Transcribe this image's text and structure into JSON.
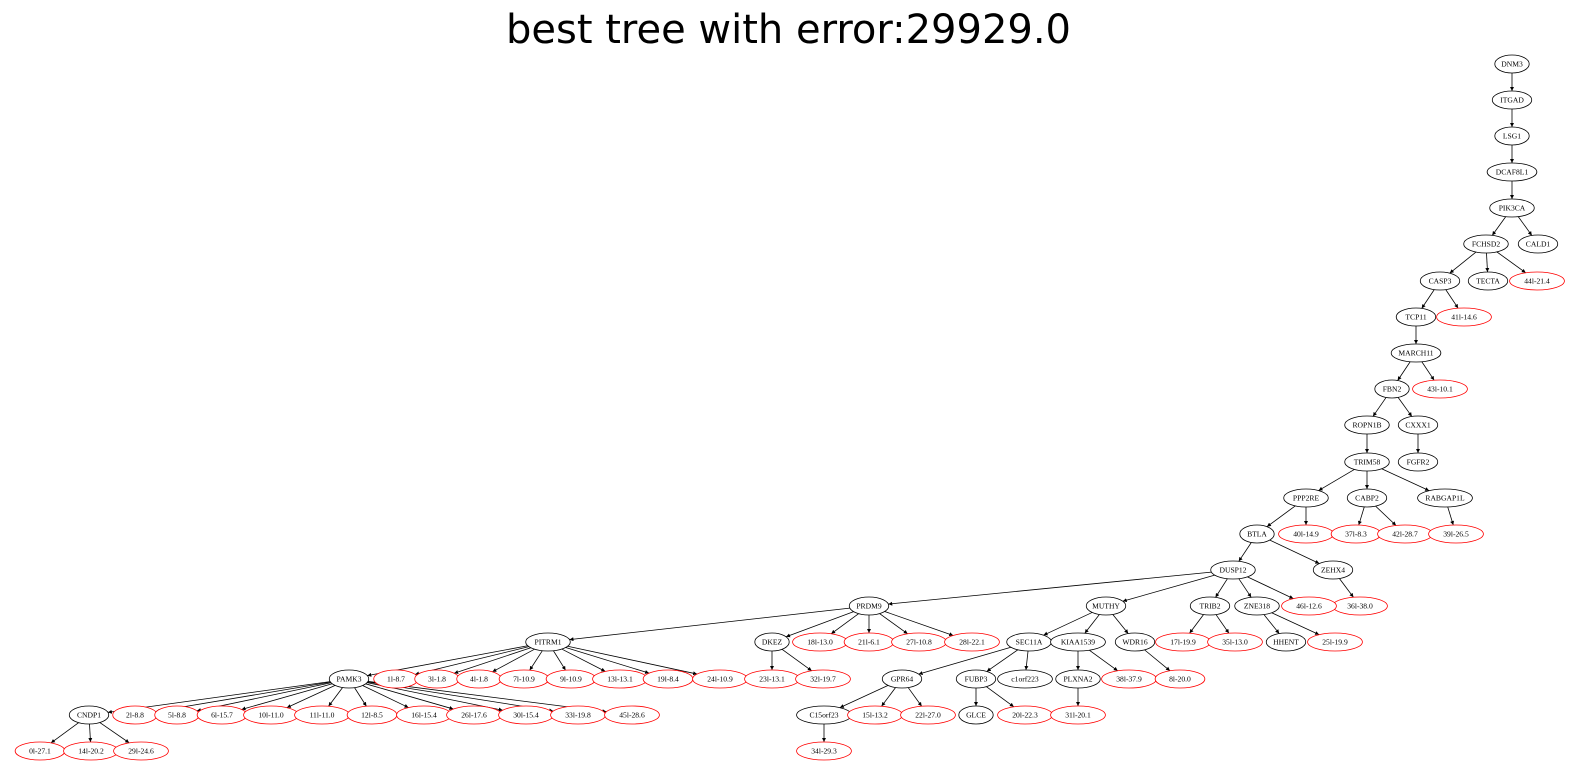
{
  "title": "best tree with error:29929.0",
  "colors": {
    "gene_stroke": "#000000",
    "sample_stroke": "#ff0000",
    "edge": "#000000",
    "background": "#ffffff"
  },
  "nodes": [
    {
      "id": "DNM3",
      "label": "DNM3",
      "kind": "gene"
    },
    {
      "id": "ITGAD",
      "label": "ITGAD",
      "kind": "gene"
    },
    {
      "id": "LSG1",
      "label": "LSG1",
      "kind": "gene"
    },
    {
      "id": "DCAF8L1",
      "label": "DCAF8L1",
      "kind": "gene"
    },
    {
      "id": "PIK3CA",
      "label": "PIK3CA",
      "kind": "gene"
    },
    {
      "id": "FCHSD2",
      "label": "FCHSD2",
      "kind": "gene"
    },
    {
      "id": "CALD1",
      "label": "CALD1",
      "kind": "gene"
    },
    {
      "id": "CASP3",
      "label": "CASP3",
      "kind": "gene"
    },
    {
      "id": "TECTA",
      "label": "TECTA",
      "kind": "gene"
    },
    {
      "id": "s44",
      "label": "44l-21.4",
      "kind": "sample"
    },
    {
      "id": "TCP11",
      "label": "TCP11",
      "kind": "gene"
    },
    {
      "id": "s41",
      "label": "41l-14.6",
      "kind": "sample"
    },
    {
      "id": "MARCH11",
      "label": "MARCH11",
      "kind": "gene"
    },
    {
      "id": "FBN2",
      "label": "FBN2",
      "kind": "gene"
    },
    {
      "id": "s43",
      "label": "43l-10.1",
      "kind": "sample"
    },
    {
      "id": "ROPN1B",
      "label": "ROPN1B",
      "kind": "gene"
    },
    {
      "id": "CXXX1",
      "label": "CXXX1",
      "kind": "gene"
    },
    {
      "id": "TRIM58",
      "label": "TRIM58",
      "kind": "gene"
    },
    {
      "id": "FGFR2",
      "label": "FGFR2",
      "kind": "gene"
    },
    {
      "id": "PPP2RE",
      "label": "PPP2RE",
      "kind": "gene"
    },
    {
      "id": "CABP2",
      "label": "CABP2",
      "kind": "gene"
    },
    {
      "id": "RABGAP1L",
      "label": "RABGAP1L",
      "kind": "gene"
    },
    {
      "id": "BTLA",
      "label": "BTLA",
      "kind": "gene"
    },
    {
      "id": "s40",
      "label": "40l-14.9",
      "kind": "sample"
    },
    {
      "id": "s37",
      "label": "37l-8.3",
      "kind": "sample"
    },
    {
      "id": "s42",
      "label": "42l-28.7",
      "kind": "sample"
    },
    {
      "id": "s39",
      "label": "39l-26.5",
      "kind": "sample"
    },
    {
      "id": "DUSP12",
      "label": "DUSP12",
      "kind": "gene"
    },
    {
      "id": "ZEHX4",
      "label": "ZEHX4",
      "kind": "gene"
    },
    {
      "id": "s36",
      "label": "36l-38.0",
      "kind": "sample"
    },
    {
      "id": "PRDM9",
      "label": "PRDM9",
      "kind": "gene"
    },
    {
      "id": "MUTHY",
      "label": "MUTHY",
      "kind": "gene"
    },
    {
      "id": "TRIB2",
      "label": "TRIB2",
      "kind": "gene"
    },
    {
      "id": "ZNE318",
      "label": "ZNE318",
      "kind": "gene"
    },
    {
      "id": "s46",
      "label": "46l-12.6",
      "kind": "sample"
    },
    {
      "id": "PITRM1",
      "label": "PITRM1",
      "kind": "gene"
    },
    {
      "id": "DKEZ",
      "label": "DKEZ",
      "kind": "gene"
    },
    {
      "id": "s18",
      "label": "18l-13.0",
      "kind": "sample"
    },
    {
      "id": "s21",
      "label": "21l-6.1",
      "kind": "sample"
    },
    {
      "id": "s27",
      "label": "27l-10.8",
      "kind": "sample"
    },
    {
      "id": "s28",
      "label": "28l-22.1",
      "kind": "sample"
    },
    {
      "id": "SEC11A",
      "label": "SEC11A",
      "kind": "gene"
    },
    {
      "id": "KIAA1539",
      "label": "KIAA1539",
      "kind": "gene"
    },
    {
      "id": "WDR16",
      "label": "WDR16",
      "kind": "gene"
    },
    {
      "id": "s17",
      "label": "17l-19.9",
      "kind": "sample"
    },
    {
      "id": "s35",
      "label": "35l-13.0",
      "kind": "sample"
    },
    {
      "id": "HHENT",
      "label": "HHENT",
      "kind": "gene"
    },
    {
      "id": "s25",
      "label": "25l-19.9",
      "kind": "sample"
    },
    {
      "id": "PAMK3",
      "label": "PAMK3",
      "kind": "gene"
    },
    {
      "id": "s1",
      "label": "1l-8.7",
      "kind": "sample"
    },
    {
      "id": "s3",
      "label": "3l-1.8",
      "kind": "sample"
    },
    {
      "id": "s4",
      "label": "4l-1.8",
      "kind": "sample"
    },
    {
      "id": "s7",
      "label": "7l-10.9",
      "kind": "sample"
    },
    {
      "id": "s9",
      "label": "9l-10.9",
      "kind": "sample"
    },
    {
      "id": "s13",
      "label": "13l-13.1",
      "kind": "sample"
    },
    {
      "id": "s19",
      "label": "19l-8.4",
      "kind": "sample"
    },
    {
      "id": "s24",
      "label": "24l-10.9",
      "kind": "sample"
    },
    {
      "id": "s23",
      "label": "23l-13.1",
      "kind": "sample"
    },
    {
      "id": "s32",
      "label": "32l-19.7",
      "kind": "sample"
    },
    {
      "id": "GPR64",
      "label": "GPR64",
      "kind": "gene"
    },
    {
      "id": "FUBP3",
      "label": "FUBP3",
      "kind": "gene"
    },
    {
      "id": "c1orf223",
      "label": "c1orf223",
      "kind": "gene"
    },
    {
      "id": "PLXNA2",
      "label": "PLXNA2",
      "kind": "gene"
    },
    {
      "id": "s38",
      "label": "38l-37.9",
      "kind": "sample"
    },
    {
      "id": "s8",
      "label": "8l-20.0",
      "kind": "sample"
    },
    {
      "id": "CNDP1",
      "label": "CNDP1",
      "kind": "gene"
    },
    {
      "id": "s2",
      "label": "2l-8.8",
      "kind": "sample"
    },
    {
      "id": "s5",
      "label": "5l-8.8",
      "kind": "sample"
    },
    {
      "id": "s6",
      "label": "6l-15.7",
      "kind": "sample"
    },
    {
      "id": "s10",
      "label": "10l-11.0",
      "kind": "sample"
    },
    {
      "id": "s11",
      "label": "11l-11.0",
      "kind": "sample"
    },
    {
      "id": "s12",
      "label": "12l-8.5",
      "kind": "sample"
    },
    {
      "id": "s16",
      "label": "16l-15.4",
      "kind": "sample"
    },
    {
      "id": "s26",
      "label": "26l-17.6",
      "kind": "sample"
    },
    {
      "id": "s30",
      "label": "30l-15.4",
      "kind": "sample"
    },
    {
      "id": "s33",
      "label": "33l-19.8",
      "kind": "sample"
    },
    {
      "id": "s45",
      "label": "45l-28.6",
      "kind": "sample"
    },
    {
      "id": "C15orf23",
      "label": "C15orf23",
      "kind": "gene"
    },
    {
      "id": "s15",
      "label": "15l-13.2",
      "kind": "sample"
    },
    {
      "id": "s22",
      "label": "22l-27.0",
      "kind": "sample"
    },
    {
      "id": "GLCE",
      "label": "GLCE",
      "kind": "gene"
    },
    {
      "id": "s20",
      "label": "20l-22.3",
      "kind": "sample"
    },
    {
      "id": "s31",
      "label": "31l-20.1",
      "kind": "sample"
    },
    {
      "id": "s0",
      "label": "0l-27.1",
      "kind": "sample"
    },
    {
      "id": "s14",
      "label": "14l-20.2",
      "kind": "sample"
    },
    {
      "id": "s29",
      "label": "29l-24.6",
      "kind": "sample"
    },
    {
      "id": "s34",
      "label": "34l-29.3",
      "kind": "sample"
    }
  ],
  "edges": [
    [
      "DNM3",
      "ITGAD"
    ],
    [
      "ITGAD",
      "LSG1"
    ],
    [
      "LSG1",
      "DCAF8L1"
    ],
    [
      "DCAF8L1",
      "PIK3CA"
    ],
    [
      "PIK3CA",
      "FCHSD2"
    ],
    [
      "PIK3CA",
      "CALD1"
    ],
    [
      "FCHSD2",
      "CASP3"
    ],
    [
      "FCHSD2",
      "TECTA"
    ],
    [
      "FCHSD2",
      "s44"
    ],
    [
      "CASP3",
      "TCP11"
    ],
    [
      "CASP3",
      "s41"
    ],
    [
      "TCP11",
      "MARCH11"
    ],
    [
      "MARCH11",
      "FBN2"
    ],
    [
      "MARCH11",
      "s43"
    ],
    [
      "FBN2",
      "ROPN1B"
    ],
    [
      "FBN2",
      "CXXX1"
    ],
    [
      "ROPN1B",
      "TRIM58"
    ],
    [
      "CXXX1",
      "FGFR2"
    ],
    [
      "TRIM58",
      "PPP2RE"
    ],
    [
      "TRIM58",
      "CABP2"
    ],
    [
      "TRIM58",
      "RABGAP1L"
    ],
    [
      "PPP2RE",
      "BTLA"
    ],
    [
      "PPP2RE",
      "s40"
    ],
    [
      "CABP2",
      "s37"
    ],
    [
      "CABP2",
      "s42"
    ],
    [
      "RABGAP1L",
      "s39"
    ],
    [
      "BTLA",
      "DUSP12"
    ],
    [
      "BTLA",
      "ZEHX4"
    ],
    [
      "ZEHX4",
      "s36"
    ],
    [
      "DUSP12",
      "PRDM9"
    ],
    [
      "DUSP12",
      "MUTHY"
    ],
    [
      "DUSP12",
      "TRIB2"
    ],
    [
      "DUSP12",
      "ZNE318"
    ],
    [
      "DUSP12",
      "s46"
    ],
    [
      "PRDM9",
      "PITRM1"
    ],
    [
      "PRDM9",
      "DKEZ"
    ],
    [
      "PRDM9",
      "s18"
    ],
    [
      "PRDM9",
      "s21"
    ],
    [
      "PRDM9",
      "s27"
    ],
    [
      "PRDM9",
      "s28"
    ],
    [
      "MUTHY",
      "SEC11A"
    ],
    [
      "MUTHY",
      "KIAA1539"
    ],
    [
      "MUTHY",
      "WDR16"
    ],
    [
      "TRIB2",
      "s17"
    ],
    [
      "TRIB2",
      "s35"
    ],
    [
      "ZNE318",
      "HHENT"
    ],
    [
      "ZNE318",
      "s25"
    ],
    [
      "PITRM1",
      "PAMK3"
    ],
    [
      "PITRM1",
      "s1"
    ],
    [
      "PITRM1",
      "s3"
    ],
    [
      "PITRM1",
      "s4"
    ],
    [
      "PITRM1",
      "s7"
    ],
    [
      "PITRM1",
      "s9"
    ],
    [
      "PITRM1",
      "s13"
    ],
    [
      "PITRM1",
      "s19"
    ],
    [
      "PITRM1",
      "s24"
    ],
    [
      "DKEZ",
      "s23"
    ],
    [
      "DKEZ",
      "s32"
    ],
    [
      "SEC11A",
      "GPR64"
    ],
    [
      "SEC11A",
      "FUBP3"
    ],
    [
      "SEC11A",
      "c1orf223"
    ],
    [
      "KIAA1539",
      "PLXNA2"
    ],
    [
      "KIAA1539",
      "s38"
    ],
    [
      "WDR16",
      "s8"
    ],
    [
      "PAMK3",
      "CNDP1"
    ],
    [
      "PAMK3",
      "s2"
    ],
    [
      "PAMK3",
      "s5"
    ],
    [
      "PAMK3",
      "s6"
    ],
    [
      "PAMK3",
      "s10"
    ],
    [
      "PAMK3",
      "s11"
    ],
    [
      "PAMK3",
      "s12"
    ],
    [
      "PAMK3",
      "s16"
    ],
    [
      "PAMK3",
      "s26"
    ],
    [
      "PAMK3",
      "s30"
    ],
    [
      "PAMK3",
      "s33"
    ],
    [
      "PAMK3",
      "s45"
    ],
    [
      "GPR64",
      "C15orf23"
    ],
    [
      "GPR64",
      "s15"
    ],
    [
      "GPR64",
      "s22"
    ],
    [
      "FUBP3",
      "GLCE"
    ],
    [
      "FUBP3",
      "s20"
    ],
    [
      "PLXNA2",
      "s31"
    ],
    [
      "CNDP1",
      "s0"
    ],
    [
      "CNDP1",
      "s14"
    ],
    [
      "CNDP1",
      "s29"
    ],
    [
      "C15orf23",
      "s34"
    ]
  ]
}
